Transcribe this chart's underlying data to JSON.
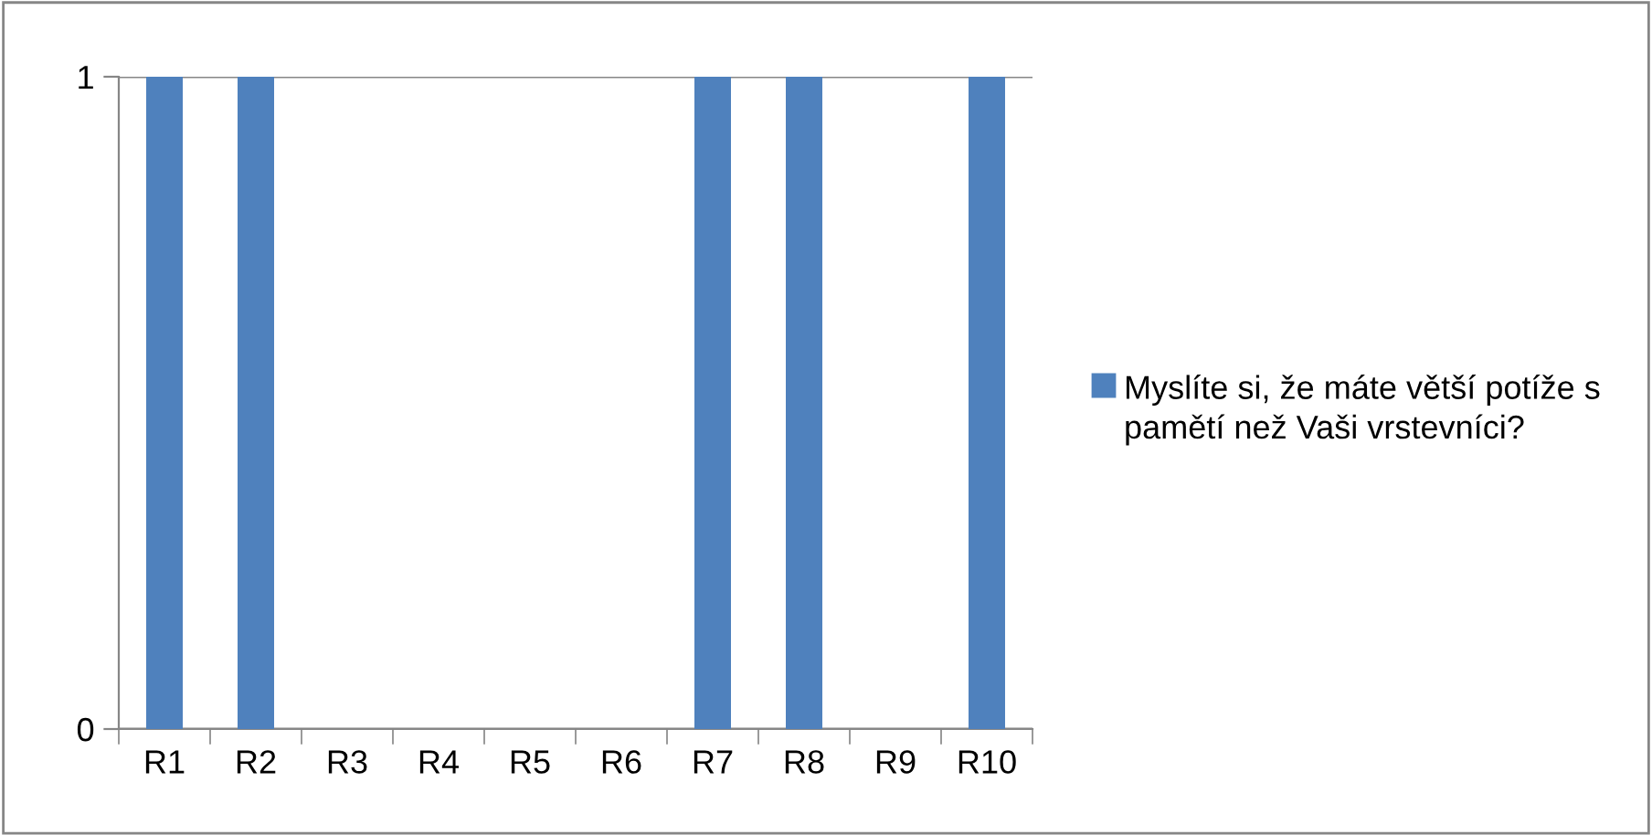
{
  "chart_data": {
    "type": "bar",
    "categories": [
      "R1",
      "R2",
      "R3",
      "R4",
      "R5",
      "R6",
      "R7",
      "R8",
      "R9",
      "R10"
    ],
    "series": [
      {
        "name": "Myslíte si, že máte větší potíže s pamětí než Vaši vrstevníci?",
        "color": "#4f81bd",
        "values": [
          1,
          1,
          0,
          0,
          0,
          0,
          1,
          1,
          0,
          1
        ]
      }
    ],
    "ylim": [
      0,
      1
    ],
    "yticks": [
      0,
      1
    ],
    "grid": "y",
    "legend": "right"
  }
}
